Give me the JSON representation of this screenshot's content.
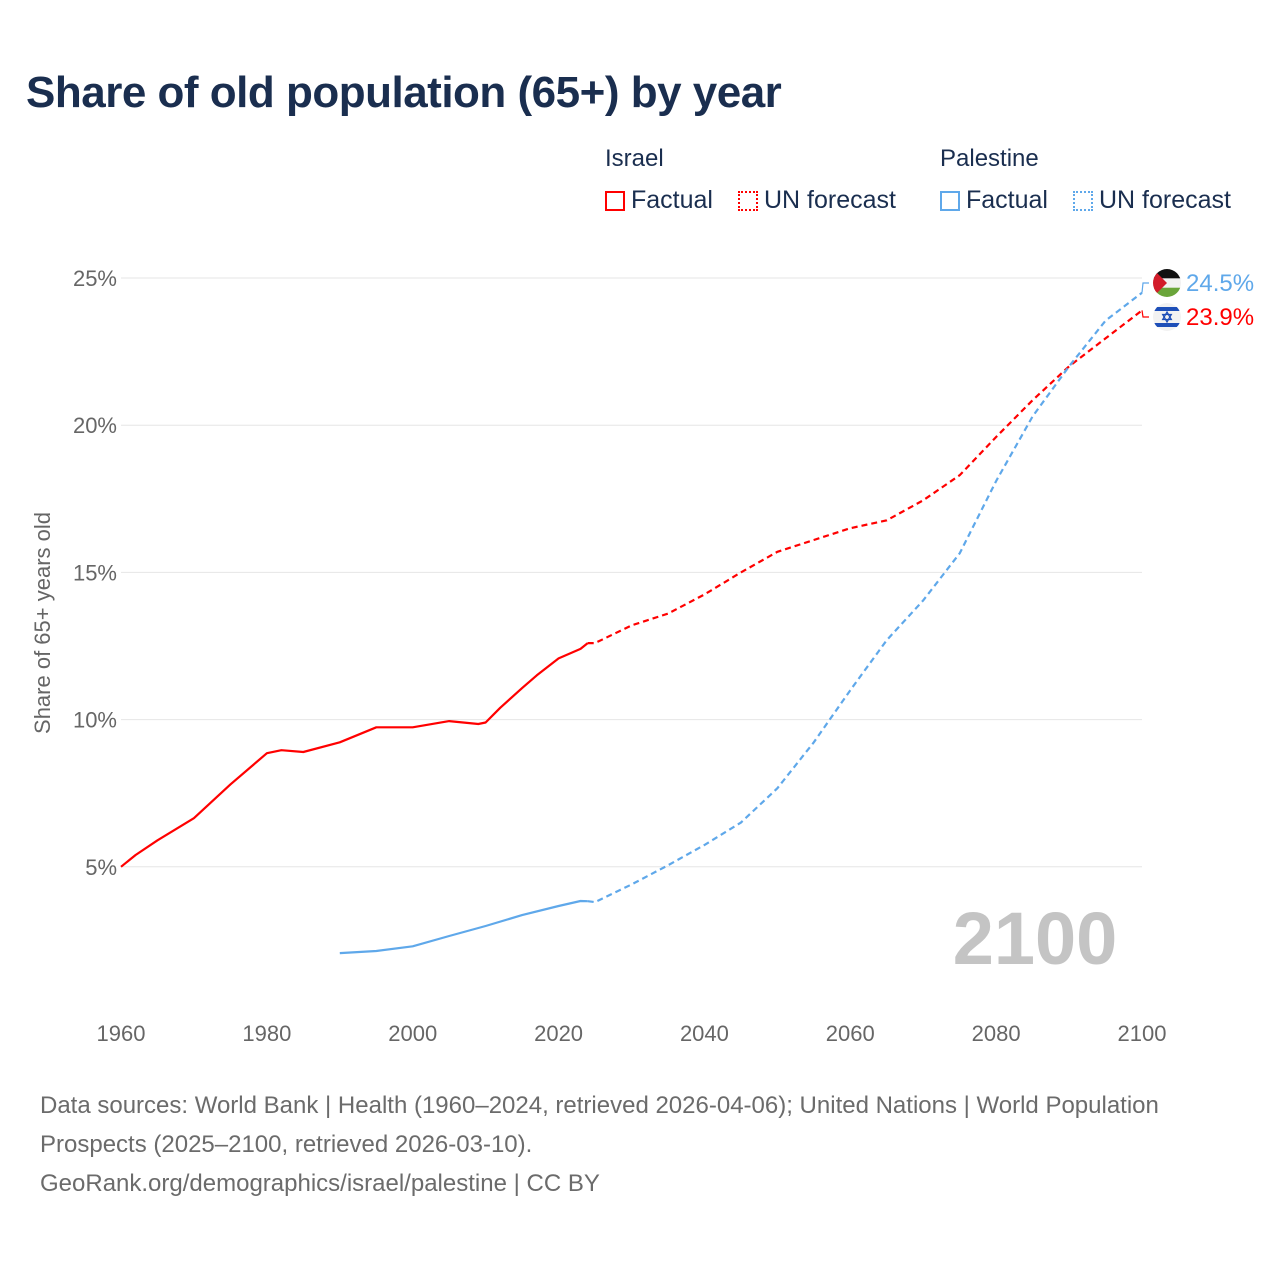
{
  "title": "Share of old population (65+) by year",
  "legend": {
    "groups": [
      {
        "name": "Israel",
        "color": "#ff0000",
        "factual": "Factual",
        "forecast": "UN forecast"
      },
      {
        "name": "Palestine",
        "color": "#5fa8ea",
        "factual": "Factual",
        "forecast": "UN forecast"
      }
    ]
  },
  "year_watermark": "2100",
  "footer": {
    "sources": "Data sources: World Bank | Health (1960–2024, retrieved 2026-04-06); United Nations | World Population Prospects (2025–2100, retrieved 2026-03-10).",
    "credit": "GeoRank.org/demographics/israel/palestine | CC BY"
  },
  "chart_data": {
    "type": "line",
    "title": "Share of old population (65+) by year",
    "xlabel": "",
    "ylabel": "Share of 65+ years old",
    "xlim": [
      1960,
      2100
    ],
    "ylim": [
      0,
      25
    ],
    "x_ticks": [
      "1960",
      "1980",
      "2000",
      "2020",
      "2040",
      "2060",
      "2080",
      "2100"
    ],
    "y_ticks": [
      {
        "v": 5,
        "label": "5%"
      },
      {
        "v": 10,
        "label": "10%"
      },
      {
        "v": 15,
        "label": "15%"
      },
      {
        "v": 20,
        "label": "20%"
      },
      {
        "v": 25,
        "label": "25%"
      }
    ],
    "grid": true,
    "series": [
      {
        "name": "Israel",
        "color": "#ff0000",
        "end_label": "23.9%",
        "flag": "israel-flag",
        "factual": {
          "x": [
            1960,
            1962,
            1965,
            1970,
            1975,
            1980,
            1982,
            1985,
            1990,
            1995,
            2000,
            2005,
            2009,
            2010,
            2012,
            2015,
            2017,
            2020,
            2023,
            2024
          ],
          "y": [
            5.0,
            5.4,
            5.9,
            6.65,
            7.8,
            8.86,
            8.96,
            8.9,
            9.23,
            9.74,
            9.74,
            9.95,
            9.85,
            9.9,
            10.4,
            11.07,
            11.5,
            12.08,
            12.4,
            12.6
          ]
        },
        "forecast": {
          "x": [
            2024,
            2025,
            2030,
            2035,
            2040,
            2045,
            2050,
            2055,
            2060,
            2065,
            2070,
            2075,
            2080,
            2085,
            2090,
            2095,
            2100
          ],
          "y": [
            12.6,
            12.6,
            13.2,
            13.6,
            14.25,
            15.0,
            15.7,
            16.1,
            16.5,
            16.77,
            17.45,
            18.3,
            19.6,
            20.85,
            22.0,
            22.95,
            23.9
          ]
        }
      },
      {
        "name": "Palestine",
        "color": "#5fa8ea",
        "end_label": "24.5%",
        "flag": "palestine-flag",
        "factual": {
          "x": [
            1990,
            1995,
            2000,
            2005,
            2010,
            2015,
            2020,
            2023,
            2024
          ],
          "y": [
            2.07,
            2.14,
            2.3,
            2.65,
            2.99,
            3.36,
            3.67,
            3.84,
            3.83
          ]
        },
        "forecast": {
          "x": [
            2024,
            2025,
            2030,
            2035,
            2040,
            2045,
            2050,
            2055,
            2060,
            2065,
            2070,
            2075,
            2080,
            2085,
            2090,
            2095,
            2100
          ],
          "y": [
            3.83,
            3.8,
            4.4,
            5.05,
            5.74,
            6.5,
            7.67,
            9.23,
            11.0,
            12.7,
            14.05,
            15.65,
            18.1,
            20.3,
            22.0,
            23.55,
            24.5
          ]
        }
      }
    ]
  }
}
